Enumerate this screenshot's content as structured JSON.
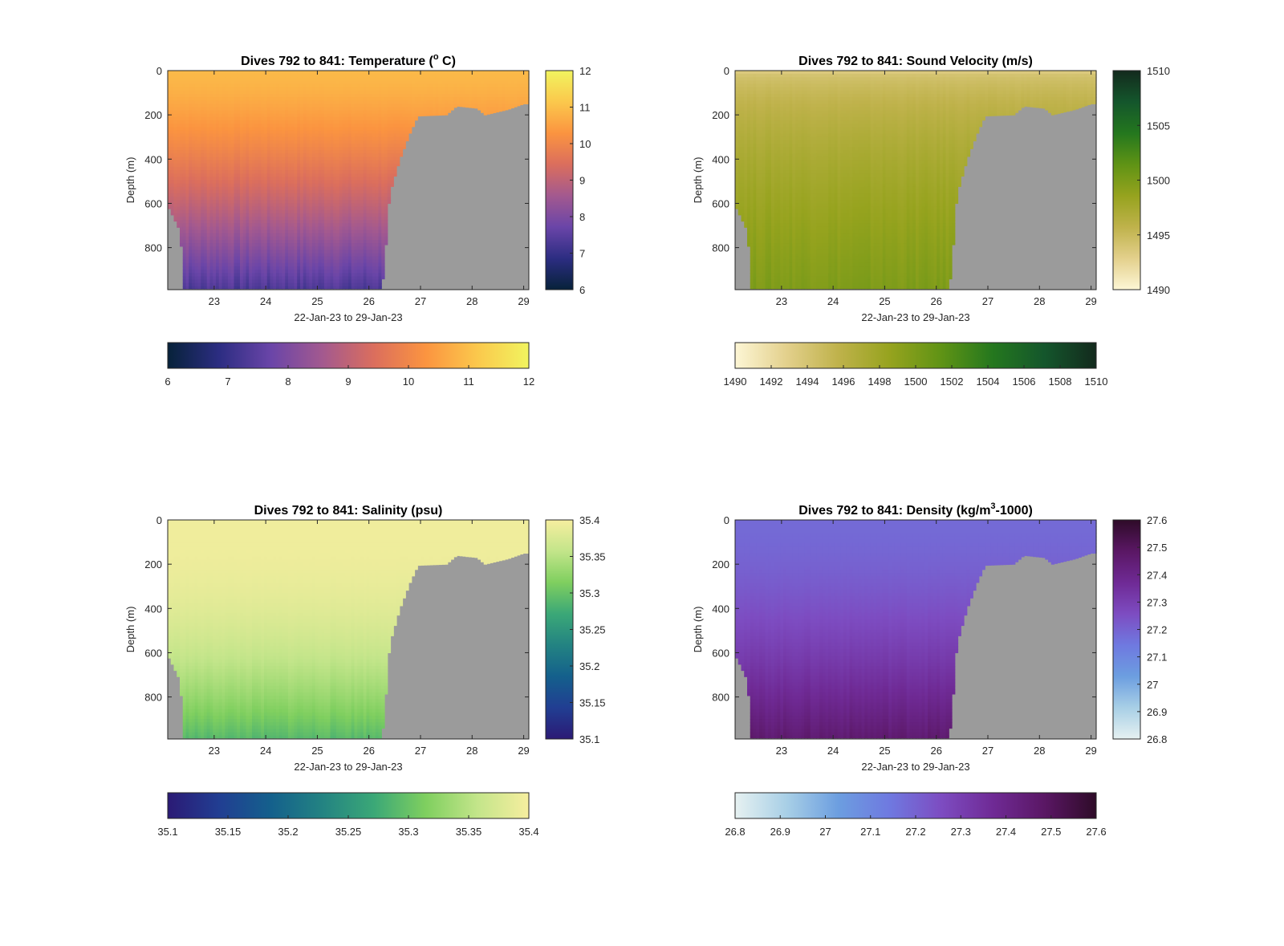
{
  "figure": {
    "background": "#ffffff",
    "land_color": "#9b9b9b"
  },
  "chart_data": [
    {
      "type": "heatmap",
      "title": "Dives 792 to 841: Temperature (°C)",
      "title_main": "Dives 792 to 841: Temperature (",
      "title_sup": "o",
      "title_end": " C)",
      "xlabel": "22-Jan-23 to 29-Jan-23",
      "ylabel": "Depth (m)",
      "xlim": [
        22.1,
        29.1
      ],
      "ylim": [
        0,
        990
      ],
      "y_reversed": true,
      "xticks": [
        "23",
        "24",
        "25",
        "26",
        "27",
        "28",
        "29"
      ],
      "xtick_values": [
        23,
        24,
        25,
        26,
        27,
        28,
        29
      ],
      "yticks": [
        "0",
        "200",
        "400",
        "600",
        "800"
      ],
      "ytick_values": [
        0,
        200,
        400,
        600,
        800
      ],
      "colorbar": {
        "range": [
          6,
          12
        ],
        "ticks": [
          "6",
          "7",
          "8",
          "9",
          "10",
          "11",
          "12"
        ],
        "tick_values": [
          6,
          7,
          8,
          9,
          10,
          11,
          12
        ],
        "colors": [
          "#07223a",
          "#2c2d82",
          "#6a45a8",
          "#a3598f",
          "#db6e5d",
          "#fb9440",
          "#fbc84c",
          "#f1f45f"
        ]
      },
      "surface_value": 10.9,
      "bottom_value": 7.3,
      "profile_shape": 1.3,
      "bottom_depth": [
        {
          "day": 22.1,
          "depth": 610
        },
        {
          "day": 22.35,
          "depth": 730
        },
        {
          "day": 22.4,
          "depth": 985
        },
        {
          "day": 26.25,
          "depth": 985
        },
        {
          "day": 26.3,
          "depth": 880
        },
        {
          "day": 26.4,
          "depth": 560
        },
        {
          "day": 26.6,
          "depth": 400
        },
        {
          "day": 26.8,
          "depth": 280
        },
        {
          "day": 26.95,
          "depth": 205
        },
        {
          "day": 27.5,
          "depth": 200
        },
        {
          "day": 27.7,
          "depth": 160
        },
        {
          "day": 28.1,
          "depth": 170
        },
        {
          "day": 28.25,
          "depth": 200
        },
        {
          "day": 28.7,
          "depth": 175
        },
        {
          "day": 29.0,
          "depth": 150
        },
        {
          "day": 29.1,
          "depth": 150
        }
      ]
    },
    {
      "type": "heatmap",
      "title": "Dives 792 to 841: Sound Velocity (m/s)",
      "title_main": "Dives 792 to 841: Sound Velocity (m/s)",
      "title_sup": "",
      "title_end": "",
      "xlabel": "22-Jan-23 to 29-Jan-23",
      "ylabel": "Depth (m)",
      "xlim": [
        22.1,
        29.1
      ],
      "ylim": [
        0,
        990
      ],
      "y_reversed": true,
      "xticks": [
        "23",
        "24",
        "25",
        "26",
        "27",
        "28",
        "29"
      ],
      "xtick_values": [
        23,
        24,
        25,
        26,
        27,
        28,
        29
      ],
      "yticks": [
        "0",
        "200",
        "400",
        "600",
        "800"
      ],
      "ytick_values": [
        0,
        200,
        400,
        600,
        800
      ],
      "colorbar": {
        "range": [
          1490,
          1510
        ],
        "ticks": [
          "1490",
          "1492",
          "1494",
          "1496",
          "1498",
          "1500",
          "1502",
          "1504",
          "1506",
          "1508",
          "1510"
        ],
        "tick_values": [
          1490,
          1492,
          1494,
          1496,
          1498,
          1500,
          1502,
          1504,
          1506,
          1508,
          1510
        ],
        "side_ticks": [
          "1490",
          "1495",
          "1500",
          "1505",
          "1510"
        ],
        "side_tick_values": [
          1490,
          1495,
          1500,
          1505,
          1510
        ],
        "colors": [
          "#fdf6d5",
          "#e3d08c",
          "#bfb24b",
          "#96a31e",
          "#5f9315",
          "#24771e",
          "#14562c",
          "#132a1d"
        ]
      },
      "surface_value": 1493.5,
      "bottom_value": 1499.8,
      "profile_shape": 0.55,
      "bottom_depth": [
        {
          "day": 22.1,
          "depth": 610
        },
        {
          "day": 22.35,
          "depth": 730
        },
        {
          "day": 22.4,
          "depth": 985
        },
        {
          "day": 26.25,
          "depth": 985
        },
        {
          "day": 26.3,
          "depth": 880
        },
        {
          "day": 26.4,
          "depth": 560
        },
        {
          "day": 26.6,
          "depth": 400
        },
        {
          "day": 26.8,
          "depth": 280
        },
        {
          "day": 26.95,
          "depth": 205
        },
        {
          "day": 27.5,
          "depth": 200
        },
        {
          "day": 27.7,
          "depth": 160
        },
        {
          "day": 28.1,
          "depth": 170
        },
        {
          "day": 28.25,
          "depth": 200
        },
        {
          "day": 28.7,
          "depth": 175
        },
        {
          "day": 29.0,
          "depth": 150
        },
        {
          "day": 29.1,
          "depth": 150
        }
      ]
    },
    {
      "type": "heatmap",
      "title": "Dives 792 to 841: Salinity (psu)",
      "title_main": "Dives 792 to 841: Salinity (psu)",
      "title_sup": "",
      "title_end": "",
      "xlabel": "22-Jan-23 to 29-Jan-23",
      "ylabel": "Depth (m)",
      "xlim": [
        22.1,
        29.1
      ],
      "ylim": [
        0,
        990
      ],
      "y_reversed": true,
      "xticks": [
        "23",
        "24",
        "25",
        "26",
        "27",
        "28",
        "29"
      ],
      "xtick_values": [
        23,
        24,
        25,
        26,
        27,
        28,
        29
      ],
      "yticks": [
        "0",
        "200",
        "400",
        "600",
        "800"
      ],
      "ytick_values": [
        0,
        200,
        400,
        600,
        800
      ],
      "colorbar": {
        "range": [
          35.1,
          35.4
        ],
        "ticks": [
          "35.1",
          "35.15",
          "35.2",
          "35.25",
          "35.3",
          "35.35",
          "35.4"
        ],
        "tick_values": [
          35.1,
          35.15,
          35.2,
          35.25,
          35.3,
          35.35,
          35.4
        ],
        "colors": [
          "#2b1a75",
          "#213e92",
          "#14608c",
          "#238382",
          "#3ba877",
          "#7fcf5f",
          "#c3e58a",
          "#f6ee9f"
        ]
      },
      "surface_value": 35.395,
      "bottom_value": 35.29,
      "profile_shape": 2.2,
      "bottom_depth": [
        {
          "day": 22.1,
          "depth": 610
        },
        {
          "day": 22.35,
          "depth": 730
        },
        {
          "day": 22.4,
          "depth": 985
        },
        {
          "day": 26.25,
          "depth": 985
        },
        {
          "day": 26.3,
          "depth": 880
        },
        {
          "day": 26.4,
          "depth": 560
        },
        {
          "day": 26.6,
          "depth": 400
        },
        {
          "day": 26.8,
          "depth": 280
        },
        {
          "day": 26.95,
          "depth": 205
        },
        {
          "day": 27.5,
          "depth": 200
        },
        {
          "day": 27.7,
          "depth": 160
        },
        {
          "day": 28.1,
          "depth": 170
        },
        {
          "day": 28.25,
          "depth": 200
        },
        {
          "day": 28.7,
          "depth": 175
        },
        {
          "day": 29.0,
          "depth": 150
        },
        {
          "day": 29.1,
          "depth": 150
        }
      ]
    },
    {
      "type": "heatmap",
      "title": "Dives 792 to 841: Density (kg/m³-1000)",
      "title_main": "Dives 792 to 841: Density (kg/m",
      "title_sup": "3",
      "title_end": "-1000)",
      "xlabel": "22-Jan-23 to 29-Jan-23",
      "ylabel": "Depth (m)",
      "xlim": [
        22.1,
        29.1
      ],
      "ylim": [
        0,
        990
      ],
      "y_reversed": true,
      "xticks": [
        "23",
        "24",
        "25",
        "26",
        "27",
        "28",
        "29"
      ],
      "xtick_values": [
        23,
        24,
        25,
        26,
        27,
        28,
        29
      ],
      "yticks": [
        "0",
        "200",
        "400",
        "600",
        "800"
      ],
      "ytick_values": [
        0,
        200,
        400,
        600,
        800
      ],
      "colorbar": {
        "range": [
          26.8,
          27.6
        ],
        "ticks": [
          "26.8",
          "26.9",
          "27",
          "27.1",
          "27.2",
          "27.3",
          "27.4",
          "27.5",
          "27.6"
        ],
        "tick_values": [
          26.8,
          26.9,
          27.0,
          27.1,
          27.2,
          27.3,
          27.4,
          27.5,
          27.6
        ],
        "colors": [
          "#e6f1f1",
          "#a8cfe6",
          "#6c9ee0",
          "#6f79e0",
          "#7d4cc1",
          "#6f2a95",
          "#5a1764",
          "#2e0b28"
        ]
      },
      "surface_value": 27.18,
      "bottom_value": 27.46,
      "profile_shape": 1.6,
      "bottom_depth": [
        {
          "day": 22.1,
          "depth": 610
        },
        {
          "day": 22.35,
          "depth": 730
        },
        {
          "day": 22.4,
          "depth": 985
        },
        {
          "day": 26.25,
          "depth": 985
        },
        {
          "day": 26.3,
          "depth": 880
        },
        {
          "day": 26.4,
          "depth": 560
        },
        {
          "day": 26.6,
          "depth": 400
        },
        {
          "day": 26.8,
          "depth": 280
        },
        {
          "day": 26.95,
          "depth": 205
        },
        {
          "day": 27.5,
          "depth": 200
        },
        {
          "day": 27.7,
          "depth": 160
        },
        {
          "day": 28.1,
          "depth": 170
        },
        {
          "day": 28.25,
          "depth": 200
        },
        {
          "day": 28.7,
          "depth": 175
        },
        {
          "day": 29.0,
          "depth": 150
        },
        {
          "day": 29.1,
          "depth": 150
        }
      ]
    }
  ]
}
